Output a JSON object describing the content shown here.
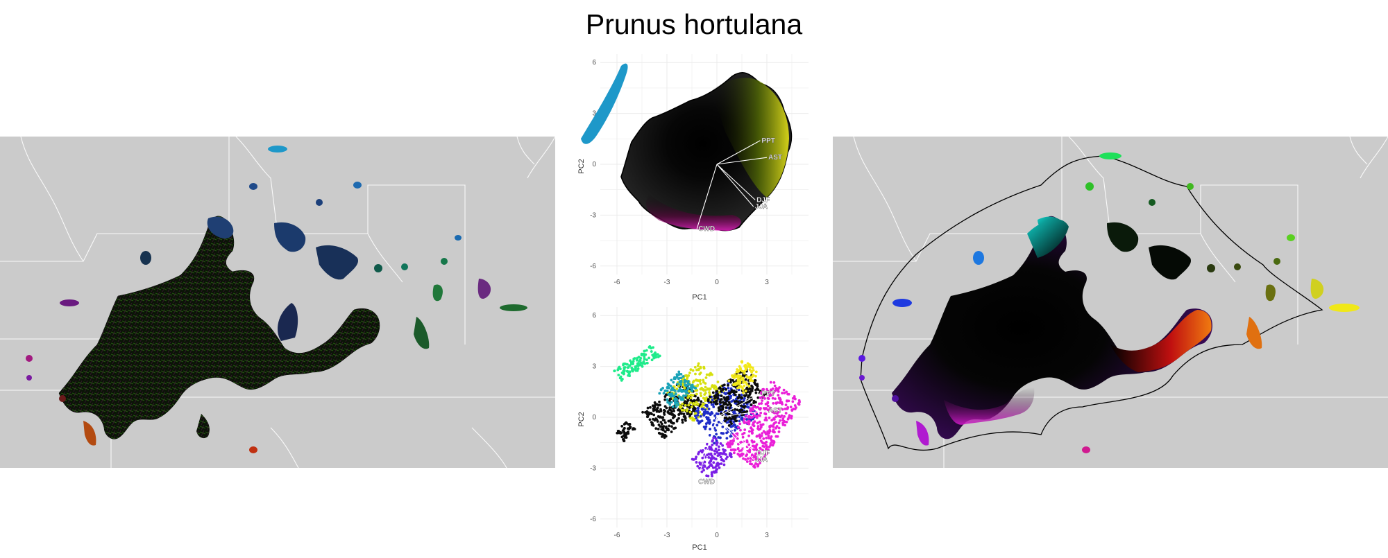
{
  "title": "Prunus hortulana",
  "chart_data": [
    {
      "type": "scatter",
      "panel": "pca-top",
      "xlabel": "PC1",
      "ylabel": "PC2",
      "xlim": [
        -7,
        5.5
      ],
      "ylim": [
        -6.5,
        6.5
      ],
      "xticks": [
        "-6",
        "-3",
        "0",
        "3"
      ],
      "yticks": [
        "6",
        "3",
        "0",
        "-3",
        "-6"
      ],
      "grid": true,
      "hull_outline": true,
      "vectors": [
        {
          "label": "PPT",
          "x": 2.6,
          "y": 1.4
        },
        {
          "label": "AST",
          "x": 3.0,
          "y": 0.4
        },
        {
          "label": "DJF",
          "x": 2.3,
          "y": -2.1
        },
        {
          "label": "JJA",
          "x": 2.2,
          "y": -2.5
        },
        {
          "label": "CWD",
          "x": -1.2,
          "y": -3.8
        }
      ],
      "color_scale": {
        "center": "#000000",
        "top": "#8ee000",
        "right": "#f3ef18",
        "bottom_right": "#e0002a",
        "bottom": "#e31fc0",
        "left": "#00bcd9",
        "top_left": "#1e98c9"
      }
    },
    {
      "type": "scatter",
      "panel": "pca-bottom",
      "xlabel": "PC1",
      "ylabel": "PC2",
      "xlim": [
        -7,
        5.5
      ],
      "ylim": [
        -6.5,
        6.5
      ],
      "xticks": [
        "-6",
        "-3",
        "0",
        "3"
      ],
      "yticks": [
        "6",
        "3",
        "0",
        "-3",
        "-6"
      ],
      "grid": true,
      "vectors": [
        {
          "label": "PPT",
          "x": 2.6,
          "y": 1.4
        },
        {
          "label": "AST",
          "x": 3.0,
          "y": 0.4
        },
        {
          "label": "DJF",
          "x": 2.3,
          "y": -2.1
        },
        {
          "label": "JJA",
          "x": 2.2,
          "y": -2.5
        },
        {
          "label": "CWD",
          "x": -1.2,
          "y": -3.8
        }
      ],
      "point_colors": [
        "#1eeb8a",
        "#0c0c0c",
        "#d6e00e",
        "#1e2cc8",
        "#ea1fd8",
        "#7b1fe6",
        "#1aa3b8",
        "#f2e81a"
      ]
    }
  ]
}
